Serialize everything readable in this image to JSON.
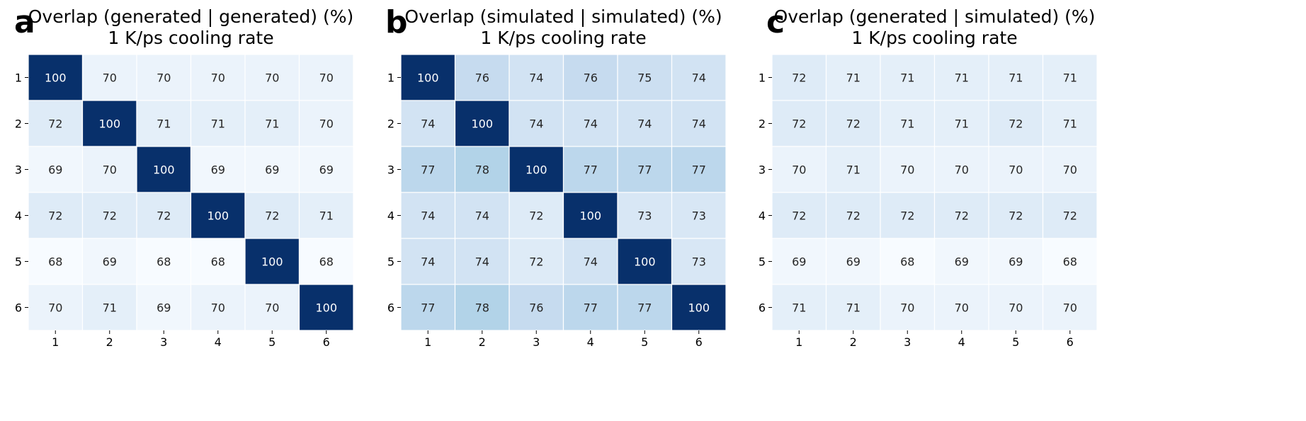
{
  "chart_data": [
    {
      "type": "heatmap",
      "panel_label": "a",
      "title_line1": "Overlap (generated | generated) (%)",
      "title_line2": "1 K/ps cooling rate",
      "x_ticks": [
        "1",
        "2",
        "3",
        "4",
        "5",
        "6"
      ],
      "y_ticks": [
        "1",
        "2",
        "3",
        "4",
        "5",
        "6"
      ],
      "values": [
        [
          100,
          70,
          70,
          70,
          70,
          70
        ],
        [
          72,
          100,
          71,
          71,
          71,
          70
        ],
        [
          69,
          70,
          100,
          69,
          69,
          69
        ],
        [
          72,
          72,
          72,
          100,
          72,
          71
        ],
        [
          68,
          69,
          68,
          68,
          100,
          68
        ],
        [
          70,
          71,
          69,
          70,
          70,
          100
        ]
      ]
    },
    {
      "type": "heatmap",
      "panel_label": "b",
      "title_line1": "Overlap (simulated | simulated) (%)",
      "title_line2": "1 K/ps cooling rate",
      "x_ticks": [
        "1",
        "2",
        "3",
        "4",
        "5",
        "6"
      ],
      "y_ticks": [
        "1",
        "2",
        "3",
        "4",
        "5",
        "6"
      ],
      "values": [
        [
          100,
          76,
          74,
          76,
          75,
          74
        ],
        [
          74,
          100,
          74,
          74,
          74,
          74
        ],
        [
          77,
          78,
          100,
          77,
          77,
          77
        ],
        [
          74,
          74,
          72,
          100,
          73,
          73
        ],
        [
          74,
          74,
          72,
          74,
          100,
          73
        ],
        [
          77,
          78,
          76,
          77,
          77,
          100
        ]
      ]
    },
    {
      "type": "heatmap",
      "panel_label": "c",
      "title_line1": "Overlap (generated | simulated) (%)",
      "title_line2": "1 K/ps cooling rate",
      "x_ticks": [
        "1",
        "2",
        "3",
        "4",
        "5",
        "6"
      ],
      "y_ticks": [
        "1",
        "2",
        "3",
        "4",
        "5",
        "6"
      ],
      "values": [
        [
          72,
          71,
          71,
          71,
          71,
          71
        ],
        [
          72,
          72,
          71,
          71,
          72,
          71
        ],
        [
          70,
          71,
          70,
          70,
          70,
          70
        ],
        [
          72,
          72,
          72,
          72,
          72,
          72
        ],
        [
          69,
          69,
          68,
          69,
          69,
          68
        ],
        [
          71,
          71,
          70,
          70,
          70,
          70
        ]
      ]
    }
  ],
  "colormap": {
    "name": "Blues",
    "vmin": 68,
    "vmax": 100,
    "low_color": "#f7fbff",
    "high_color": "#08306b",
    "cell_border": "#ffffff"
  }
}
